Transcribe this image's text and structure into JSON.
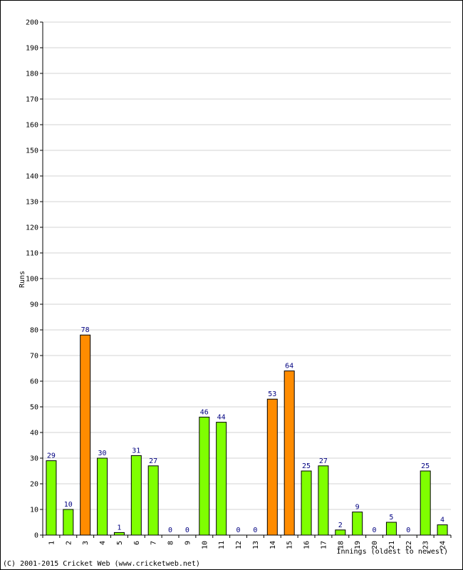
{
  "chart_data": {
    "type": "bar",
    "categories": [
      "1",
      "2",
      "3",
      "4",
      "5",
      "6",
      "7",
      "8",
      "9",
      "10",
      "11",
      "12",
      "13",
      "14",
      "15",
      "16",
      "17",
      "18",
      "19",
      "20",
      "21",
      "22",
      "23",
      "24"
    ],
    "values": [
      29,
      10,
      78,
      30,
      1,
      31,
      27,
      0,
      0,
      46,
      44,
      0,
      0,
      53,
      64,
      25,
      27,
      2,
      9,
      0,
      5,
      0,
      25,
      4
    ],
    "highlight": [
      false,
      false,
      true,
      false,
      false,
      false,
      false,
      false,
      false,
      false,
      false,
      false,
      false,
      true,
      true,
      false,
      false,
      false,
      false,
      false,
      false,
      false,
      false,
      false
    ],
    "data_labels": [
      "29",
      "10",
      "78",
      "30",
      "1",
      "31",
      "27",
      "0",
      "0",
      "46",
      "44",
      "0",
      "0",
      "53",
      "64",
      "25",
      "27",
      "2",
      "9",
      "0",
      "5",
      "0",
      "25",
      "4"
    ],
    "yticks": [
      "0",
      "10",
      "20",
      "30",
      "40",
      "50",
      "60",
      "70",
      "80",
      "90",
      "100",
      "110",
      "120",
      "130",
      "140",
      "150",
      "160",
      "170",
      "180",
      "190",
      "200"
    ],
    "ylim": [
      0,
      200
    ],
    "xlabel": "Innings (oldest to newest)",
    "ylabel": "Runs",
    "grid": true,
    "colors": {
      "bar": "#7fff00",
      "bar_highlight": "#ff8c00",
      "bar_border": "#000000",
      "grid": "#d3d3d3",
      "data_label": "#000080"
    }
  },
  "footer": {
    "copyright": "(C) 2001-2015 Cricket Web (www.cricketweb.net)"
  }
}
